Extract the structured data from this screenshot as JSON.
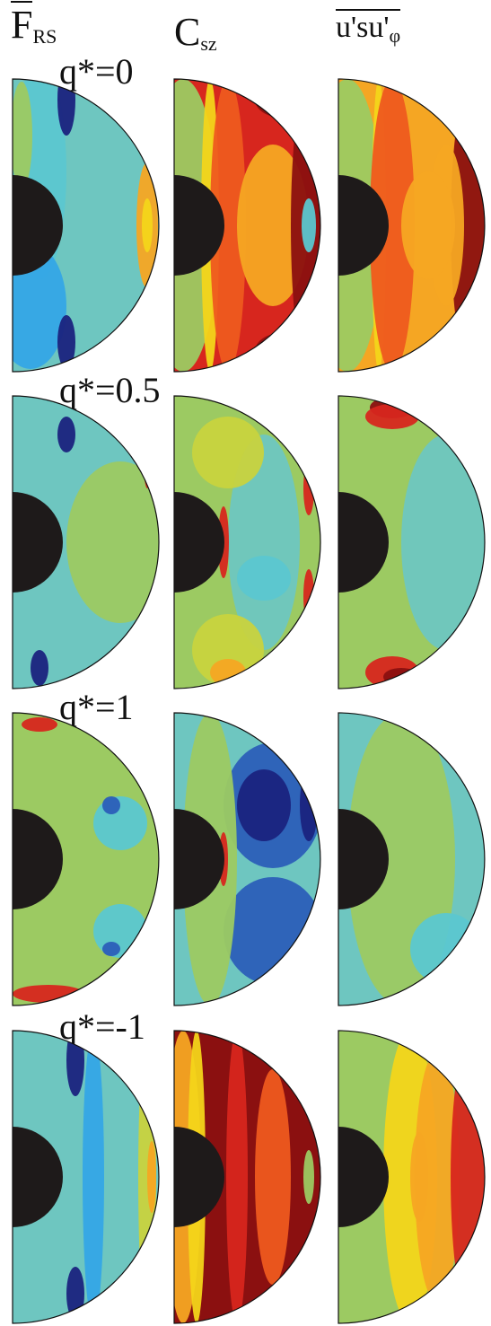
{
  "headers": {
    "col1": {
      "base": "F",
      "sub": "RS"
    },
    "col2": {
      "base": "C",
      "sub": "sz"
    },
    "col3": {
      "text": "u's",
      "text2": "u'",
      "sub2": "φ"
    }
  },
  "rows": [
    {
      "label": "q*=0"
    },
    {
      "label": "q*=0.5"
    },
    {
      "label": "q*=1"
    },
    {
      "label": "q*=-1"
    }
  ],
  "palette": {
    "dark_blue": "#1a237e",
    "blue": "#2b5fb8",
    "light_blue": "#34a7e6",
    "cyan": "#5bc7d0",
    "teal": "#6ec6c0",
    "green": "#9cca62",
    "yellow_green": "#c8d33e",
    "yellow": "#f3d51a",
    "orange": "#f5a623",
    "red_orange": "#ee5a1f",
    "red": "#d7261e",
    "dark_red": "#8b1010",
    "core": "#1e1a1a"
  }
}
